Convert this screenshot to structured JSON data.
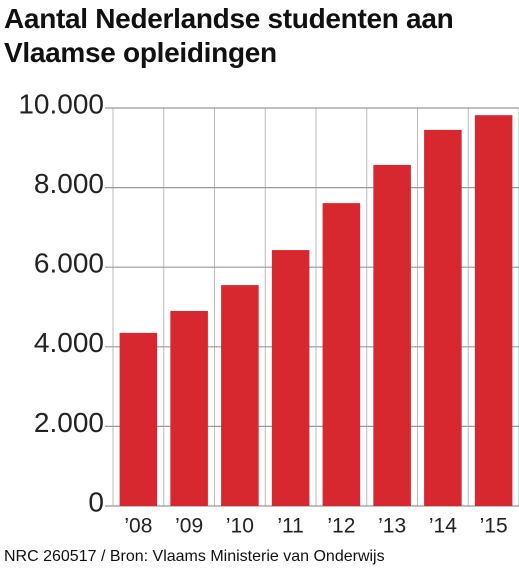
{
  "chart_data": {
    "type": "bar",
    "title": "Aantal Nederlandse studenten aan Vlaamse opleidingen",
    "source": "NRC 260517 / Bron: Vlaams Ministerie van Onderwijs",
    "categories": [
      "’08",
      "’09",
      "’10",
      "’11",
      "’12",
      "’13",
      "’14",
      "’15"
    ],
    "values": [
      4350,
      4900,
      5550,
      6430,
      7610,
      8570,
      9450,
      9820
    ],
    "color": "#d7282f",
    "ylim": [
      0,
      10000
    ],
    "yticks": [
      0,
      {
        "value": 2000,
        "label": "2.000"
      },
      {
        "value": 4000,
        "label": "4.000"
      },
      {
        "value": 6000,
        "label": "6.000"
      },
      {
        "value": 8000,
        "label": "8.000"
      },
      {
        "value": 10000,
        "label": "10.000"
      }
    ],
    "grid": true
  }
}
